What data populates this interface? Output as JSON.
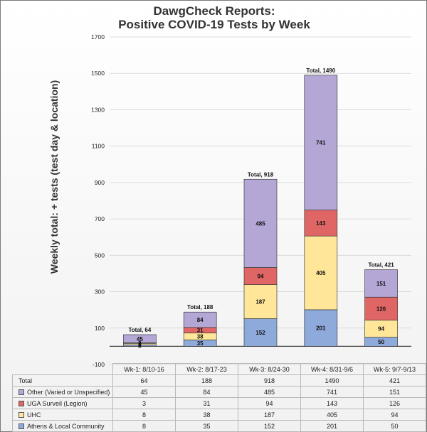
{
  "chart_data": {
    "type": "bar",
    "stacked": true,
    "title_lines": [
      "DawgCheck Reports:",
      "Positive COVID-19 Tests by Week"
    ],
    "title": "DawgCheck Reports: Positive COVID-19 Tests by Week",
    "xlabel": "",
    "ylabel": "Weekly total: + tests  (test day & location)",
    "ylim": [
      -100,
      1700
    ],
    "yticks": [
      -100,
      100,
      300,
      500,
      700,
      900,
      1100,
      1300,
      1500,
      1700
    ],
    "ytick_labels": [
      "-100",
      "100",
      "300",
      "500",
      "700",
      "900",
      "1100",
      "1300",
      "1500",
      "1700"
    ],
    "categories": [
      "Wk-1: 8/10-16",
      "Wk-2: 8/17-23",
      "Wk-3: 8/24-30",
      "Wk-4: 8/31-9/6",
      "Wk-5: 9/7-9/13"
    ],
    "series": [
      {
        "name": "Athens & Local Community",
        "color": "#8eaadb",
        "values": [
          8,
          35,
          152,
          201,
          50
        ]
      },
      {
        "name": "UHC",
        "color": "#ffe699",
        "values": [
          8,
          38,
          187,
          405,
          94
        ]
      },
      {
        "name": "UGA Surveil (Legion)",
        "color": "#e06666",
        "values": [
          3,
          31,
          94,
          143,
          126
        ]
      },
      {
        "name": "Other (Varied or Unspecified)",
        "color": "#b4a7d6",
        "values": [
          45,
          84,
          485,
          741,
          151
        ]
      }
    ],
    "totals": [
      64,
      188,
      918,
      1490,
      421
    ],
    "total_prefix": "Total, ",
    "table": {
      "header": [
        "Wk-1: 8/10-16",
        "Wk-2: 8/17-23",
        "Wk-3: 8/24-30",
        "Wk-4: 8/31-9/6",
        "Wk-5: 9/7-9/13"
      ],
      "rows": [
        {
          "label": "Total",
          "swatch": null,
          "values": [
            "64",
            "188",
            "918",
            "1490",
            "421"
          ]
        },
        {
          "label": "Other (Varied or Unspecified)",
          "swatch": "#b4a7d6",
          "values": [
            "45",
            "84",
            "485",
            "741",
            "151"
          ]
        },
        {
          "label": "UGA Surveil (Legion)",
          "swatch": "#e06666",
          "values": [
            "3",
            "31",
            "94",
            "143",
            "126"
          ]
        },
        {
          "label": "UHC",
          "swatch": "#ffe699",
          "values": [
            "8",
            "38",
            "187",
            "405",
            "94"
          ]
        },
        {
          "label": "Athens & Local Community",
          "swatch": "#8eaadb",
          "values": [
            "8",
            "35",
            "152",
            "201",
            "50"
          ]
        }
      ]
    }
  }
}
